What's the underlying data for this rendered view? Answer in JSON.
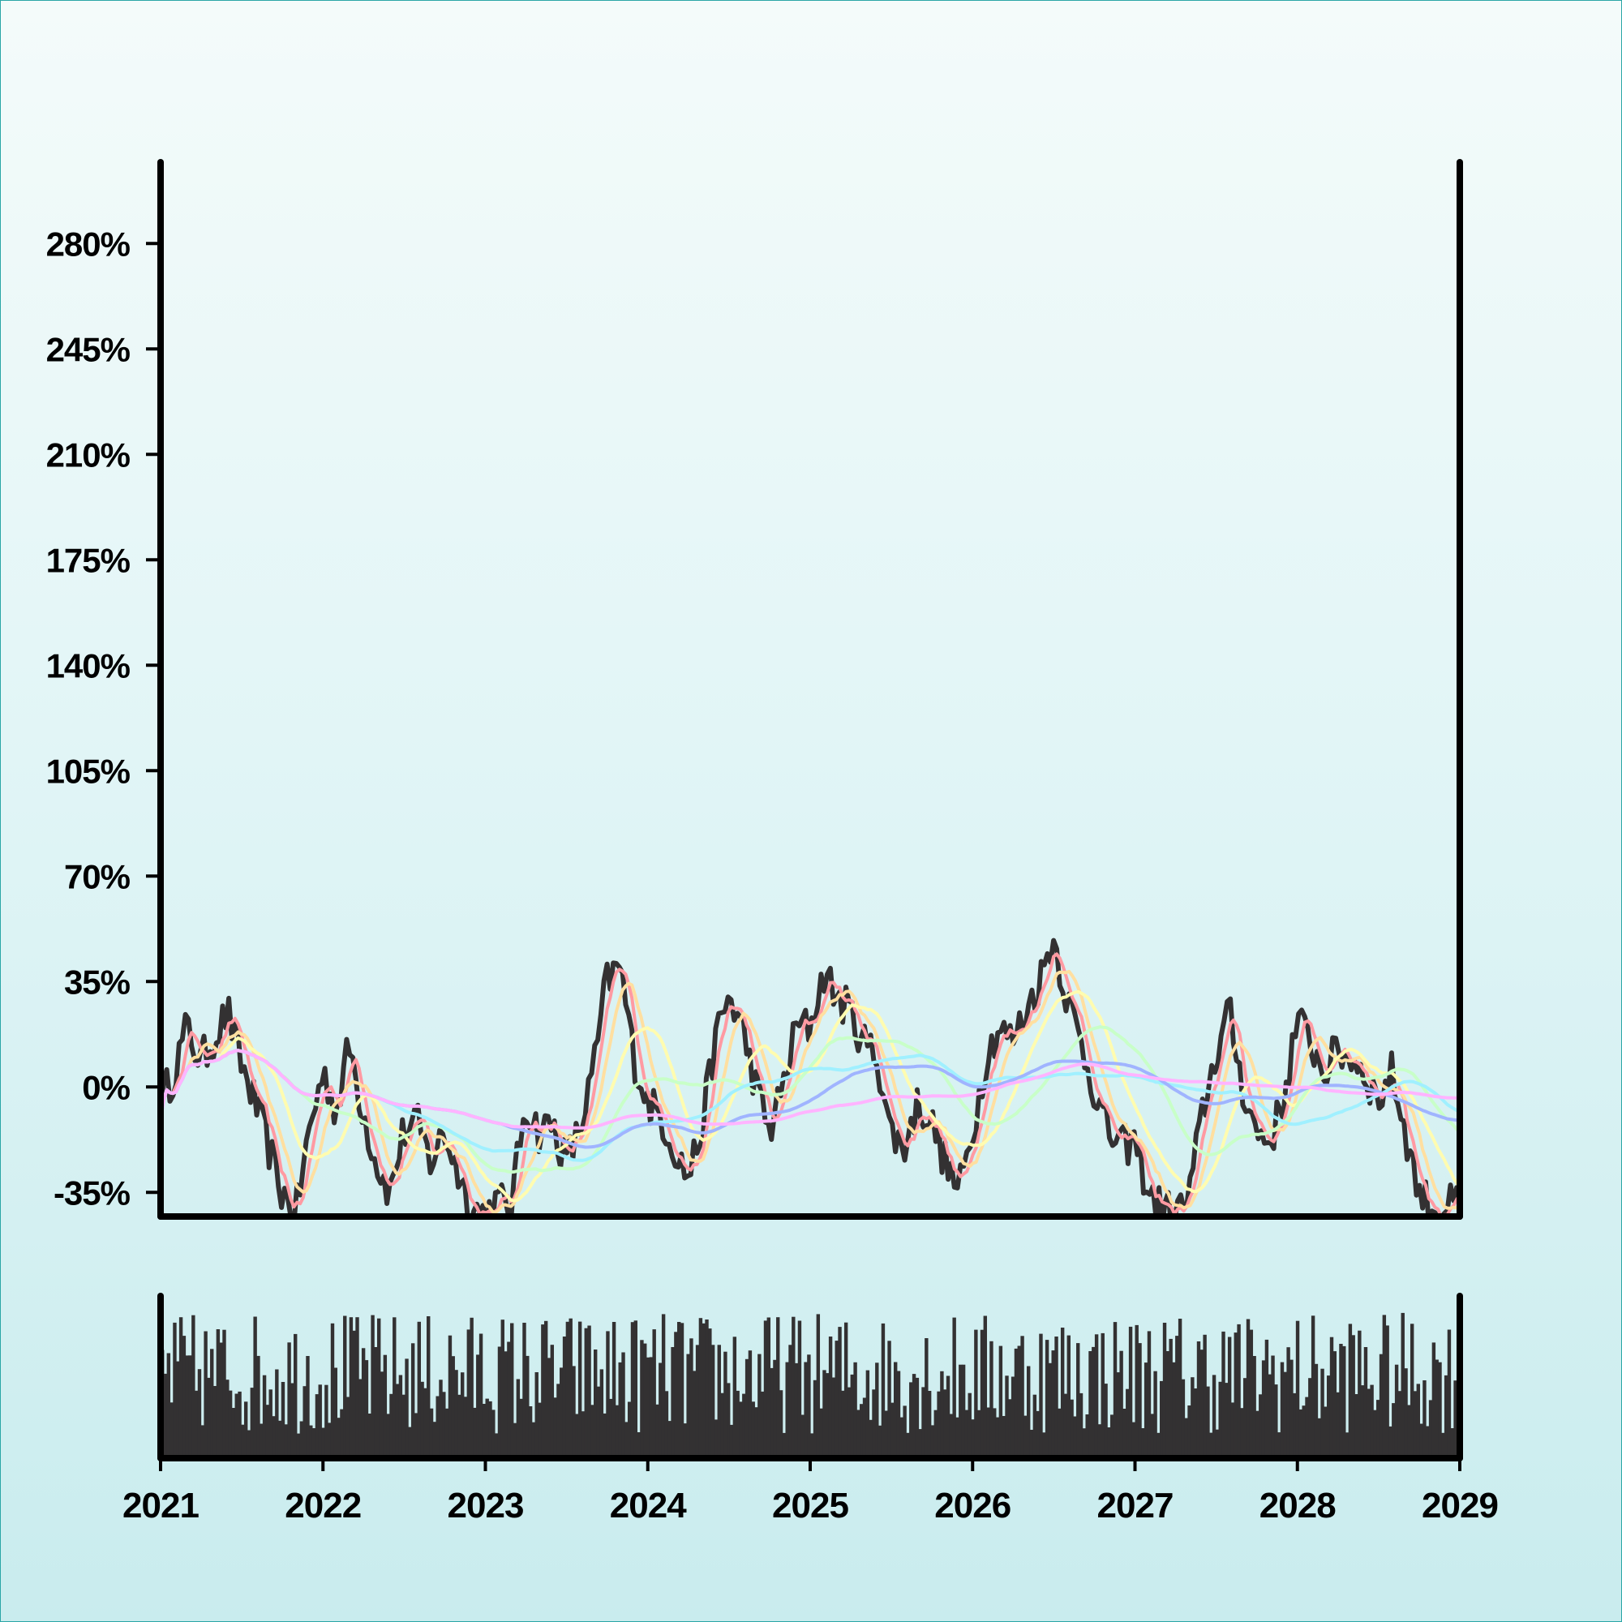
{
  "chart_data": {
    "type": "line",
    "title": "",
    "xlabel": "",
    "ylabel": "",
    "x_ticks": [
      "2021",
      "2022",
      "2023",
      "2024",
      "2025",
      "2026",
      "2027",
      "2028",
      "2029"
    ],
    "y_ticks": [
      "-35%",
      "0%",
      "35%",
      "70%",
      "105%",
      "140%",
      "175%",
      "210%",
      "245%",
      "280%"
    ],
    "y_tick_values": [
      -35,
      0,
      35,
      70,
      105,
      140,
      175,
      210,
      245,
      280
    ],
    "xlim": [
      "2021-01-01",
      "2029-01-01"
    ],
    "ylim": [
      -43,
      307
    ],
    "grid": false,
    "legend": "none",
    "price_color": "#333132",
    "series_colors": [
      "#ff9aa2",
      "#ffdfa0",
      "#fffcb0",
      "#c8ffc8",
      "#a0f0ff",
      "#a0b4ff",
      "#ffb4ff"
    ],
    "price_anchors": [
      [
        "2021-01",
        -5
      ],
      [
        "2021-02",
        5
      ],
      [
        "2021-03",
        20
      ],
      [
        "2021-04",
        8
      ],
      [
        "2021-06",
        25
      ],
      [
        "2021-07",
        8
      ],
      [
        "2021-08",
        -5
      ],
      [
        "2021-09",
        -20
      ],
      [
        "2021-10",
        -35
      ],
      [
        "2021-11",
        -42
      ],
      [
        "2021-12",
        -15
      ],
      [
        "2022-01",
        5
      ],
      [
        "2022-02",
        -8
      ],
      [
        "2022-03",
        14
      ],
      [
        "2022-04",
        -8
      ],
      [
        "2022-05",
        -25
      ],
      [
        "2022-06",
        -35
      ],
      [
        "2022-07",
        -15
      ],
      [
        "2022-08",
        -12
      ],
      [
        "2022-09",
        -25
      ],
      [
        "2022-10",
        -15
      ],
      [
        "2022-11",
        -28
      ],
      [
        "2022-12",
        -40
      ],
      [
        "2023-01",
        -42
      ],
      [
        "2023-02",
        -38
      ],
      [
        "2023-03",
        -40
      ],
      [
        "2023-04",
        -5
      ],
      [
        "2023-05",
        -15
      ],
      [
        "2023-06",
        -12
      ],
      [
        "2023-07",
        -25
      ],
      [
        "2023-08",
        -15
      ],
      [
        "2023-09",
        5
      ],
      [
        "2023-10",
        35
      ],
      [
        "2023-11",
        40
      ],
      [
        "2023-12",
        10
      ],
      [
        "2024-01",
        -5
      ],
      [
        "2024-02",
        -10
      ],
      [
        "2024-03",
        -20
      ],
      [
        "2024-04",
        -30
      ],
      [
        "2024-05",
        -15
      ],
      [
        "2024-06",
        15
      ],
      [
        "2024-07",
        30
      ],
      [
        "2024-08",
        20
      ],
      [
        "2024-09",
        0
      ],
      [
        "2024-10",
        -15
      ],
      [
        "2024-11",
        0
      ],
      [
        "2024-12",
        20
      ],
      [
        "2025-01",
        20
      ],
      [
        "2025-02",
        38
      ],
      [
        "2025-03",
        30
      ],
      [
        "2025-04",
        25
      ],
      [
        "2025-05",
        15
      ],
      [
        "2025-06",
        10
      ],
      [
        "2025-07",
        -15
      ],
      [
        "2025-08",
        -20
      ],
      [
        "2025-09",
        -5
      ],
      [
        "2025-10",
        -12
      ],
      [
        "2025-11",
        -25
      ],
      [
        "2025-12",
        -35
      ],
      [
        "2026-01",
        -15
      ],
      [
        "2026-02",
        10
      ],
      [
        "2026-03",
        20
      ],
      [
        "2026-04",
        15
      ],
      [
        "2026-05",
        25
      ],
      [
        "2026-06",
        35
      ],
      [
        "2026-07",
        50
      ],
      [
        "2026-08",
        30
      ],
      [
        "2026-09",
        15
      ],
      [
        "2026-10",
        0
      ],
      [
        "2026-11",
        -15
      ],
      [
        "2026-12",
        -20
      ],
      [
        "2027-01",
        -18
      ],
      [
        "2027-02",
        -35
      ],
      [
        "2027-03",
        -40
      ],
      [
        "2027-04",
        -42
      ],
      [
        "2027-05",
        -38
      ],
      [
        "2027-06",
        -10
      ],
      [
        "2027-07",
        10
      ],
      [
        "2027-08",
        25
      ],
      [
        "2027-09",
        0
      ],
      [
        "2027-10",
        -15
      ],
      [
        "2027-11",
        -18
      ],
      [
        "2027-12",
        -5
      ],
      [
        "2028-01",
        22
      ],
      [
        "2028-02",
        15
      ],
      [
        "2028-03",
        5
      ],
      [
        "2028-04",
        12
      ],
      [
        "2028-05",
        10
      ],
      [
        "2028-06",
        5
      ],
      [
        "2028-07",
        -5
      ],
      [
        "2028-08",
        5
      ],
      [
        "2028-09",
        -15
      ],
      [
        "2028-10",
        -35
      ],
      [
        "2028-11",
        -40
      ],
      [
        "2028-12",
        -40
      ],
      [
        "2029-01",
        -38
      ]
    ],
    "series": [
      {
        "window": 5
      },
      {
        "window": 10
      },
      {
        "window": 20
      },
      {
        "window": 40
      },
      {
        "window": 70
      },
      {
        "window": 110
      },
      {
        "window": 160
      }
    ],
    "volume": {
      "color": "#333132",
      "min_fraction": 0.15,
      "max_fraction": 0.9
    }
  }
}
